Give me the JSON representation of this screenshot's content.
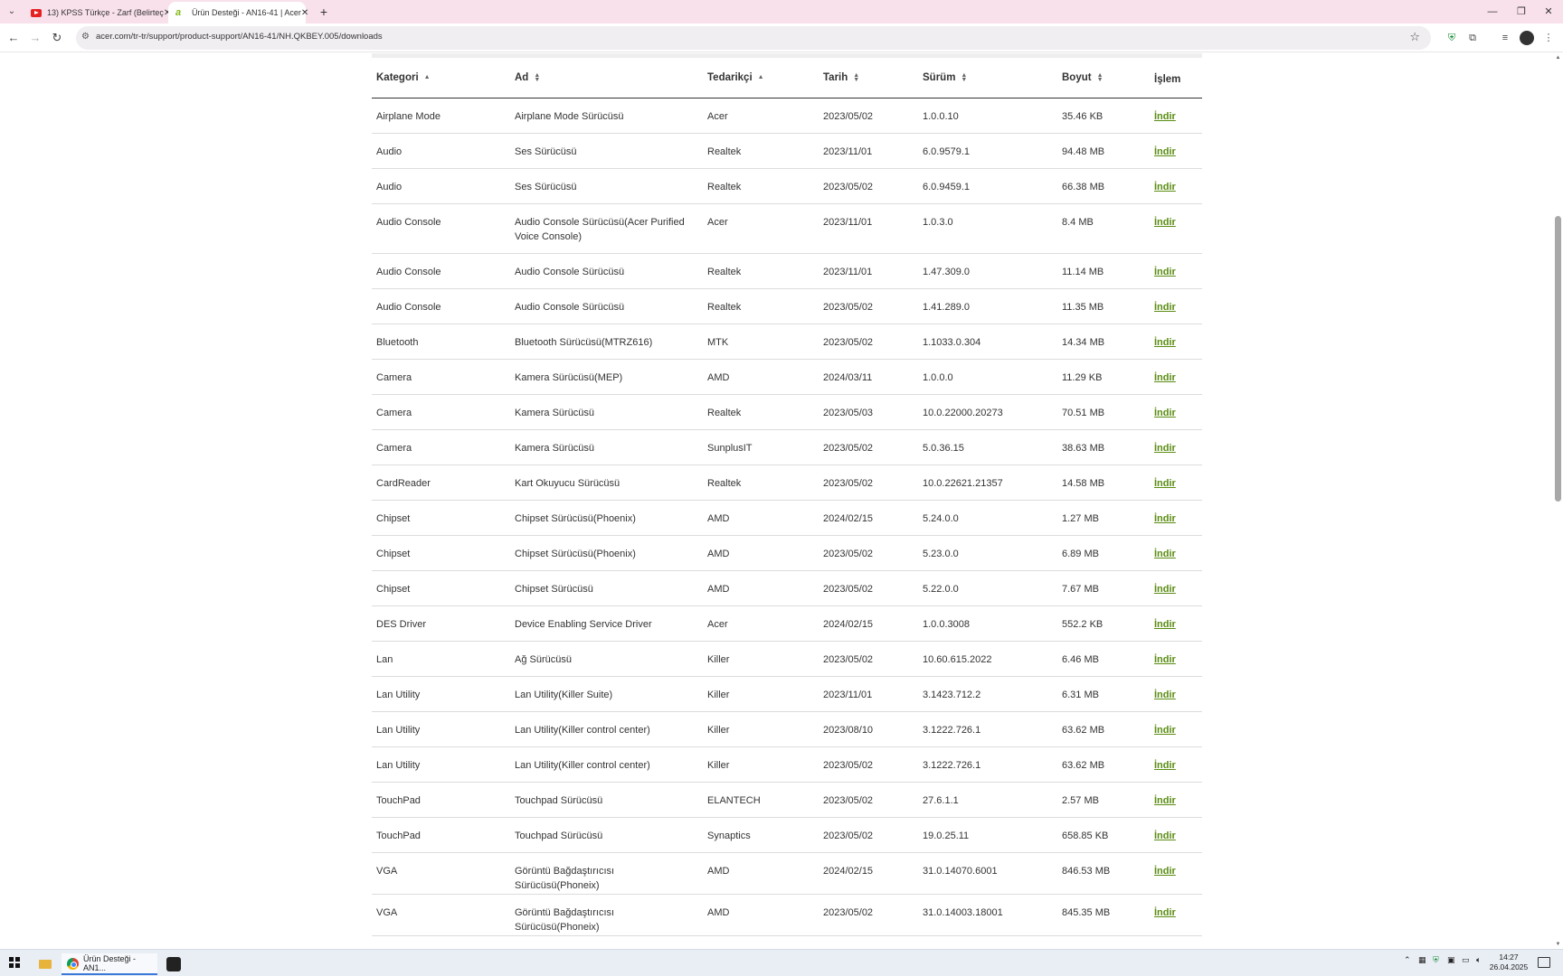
{
  "browser": {
    "tabs": [
      {
        "title": "13) KPSS Türkçe - Zarf (Belirteç",
        "active": false
      },
      {
        "title": "Ürün Desteği - AN16-41 | Acer",
        "active": true
      }
    ],
    "url": "acer.com/tr-tr/support/product-support/AN16-41/NH.QKBEY.005/downloads"
  },
  "table": {
    "headers": {
      "category": "Kategori",
      "name": "Ad",
      "vendor": "Tedarikçi",
      "date": "Tarih",
      "version": "Sürüm",
      "size": "Boyut",
      "action": "İşlem"
    },
    "rows": [
      {
        "category": "Airplane Mode",
        "name": "Airplane Mode Sürücüsü",
        "vendor": "Acer",
        "date": "2023/05/02",
        "version": "1.0.0.10",
        "size": "35.46 KB",
        "action": "İndir"
      },
      {
        "category": "Audio",
        "name": "Ses Sürücüsü",
        "vendor": "Realtek",
        "date": "2023/11/01",
        "version": "6.0.9579.1",
        "size": "94.48 MB",
        "action": "İndir"
      },
      {
        "category": "Audio",
        "name": "Ses Sürücüsü",
        "vendor": "Realtek",
        "date": "2023/05/02",
        "version": "6.0.9459.1",
        "size": "66.38 MB",
        "action": "İndir"
      },
      {
        "category": "Audio Console",
        "name": "Audio Console Sürücüsü(Acer Purified Voice Console)",
        "vendor": "Acer",
        "date": "2023/11/01",
        "version": "1.0.3.0",
        "size": "8.4 MB",
        "action": "İndir"
      },
      {
        "category": "Audio Console",
        "name": "Audio Console Sürücüsü",
        "vendor": "Realtek",
        "date": "2023/11/01",
        "version": "1.47.309.0",
        "size": "11.14 MB",
        "action": "İndir"
      },
      {
        "category": "Audio Console",
        "name": "Audio Console Sürücüsü",
        "vendor": "Realtek",
        "date": "2023/05/02",
        "version": "1.41.289.0",
        "size": "11.35 MB",
        "action": "İndir"
      },
      {
        "category": "Bluetooth",
        "name": "Bluetooth Sürücüsü(MTRZ616)",
        "vendor": "MTK",
        "date": "2023/05/02",
        "version": "1.1033.0.304",
        "size": "14.34 MB",
        "action": "İndir"
      },
      {
        "category": "Camera",
        "name": "Kamera Sürücüsü(MEP)",
        "vendor": "AMD",
        "date": "2024/03/11",
        "version": "1.0.0.0",
        "size": "11.29 KB",
        "action": "İndir"
      },
      {
        "category": "Camera",
        "name": "Kamera Sürücüsü",
        "vendor": "Realtek",
        "date": "2023/05/03",
        "version": "10.0.22000.20273",
        "size": "70.51 MB",
        "action": "İndir"
      },
      {
        "category": "Camera",
        "name": "Kamera Sürücüsü",
        "vendor": "SunplusIT",
        "date": "2023/05/02",
        "version": "5.0.36.15",
        "size": "38.63 MB",
        "action": "İndir"
      },
      {
        "category": "CardReader",
        "name": "Kart Okuyucu Sürücüsü",
        "vendor": "Realtek",
        "date": "2023/05/02",
        "version": "10.0.22621.21357",
        "size": "14.58 MB",
        "action": "İndir"
      },
      {
        "category": "Chipset",
        "name": "Chipset Sürücüsü(Phoenix)",
        "vendor": "AMD",
        "date": "2024/02/15",
        "version": "5.24.0.0",
        "size": "1.27 MB",
        "action": "İndir"
      },
      {
        "category": "Chipset",
        "name": "Chipset Sürücüsü(Phoenix)",
        "vendor": "AMD",
        "date": "2023/05/02",
        "version": "5.23.0.0",
        "size": "6.89 MB",
        "action": "İndir"
      },
      {
        "category": "Chipset",
        "name": "Chipset Sürücüsü",
        "vendor": "AMD",
        "date": "2023/05/02",
        "version": "5.22.0.0",
        "size": "7.67 MB",
        "action": "İndir"
      },
      {
        "category": "DES Driver",
        "name": "Device Enabling Service Driver",
        "vendor": "Acer",
        "date": "2024/02/15",
        "version": "1.0.0.3008",
        "size": "552.2 KB",
        "action": "İndir"
      },
      {
        "category": "Lan",
        "name": "Ağ Sürücüsü",
        "vendor": "Killer",
        "date": "2023/05/02",
        "version": "10.60.615.2022",
        "size": "6.46 MB",
        "action": "İndir"
      },
      {
        "category": "Lan Utility",
        "name": "Lan Utility(Killer Suite)",
        "vendor": "Killer",
        "date": "2023/11/01",
        "version": "3.1423.712.2",
        "size": "6.31 MB",
        "action": "İndir"
      },
      {
        "category": "Lan Utility",
        "name": "Lan Utility(Killer control center)",
        "vendor": "Killer",
        "date": "2023/08/10",
        "version": "3.1222.726.1",
        "size": "63.62 MB",
        "action": "İndir"
      },
      {
        "category": "Lan Utility",
        "name": "Lan Utility(Killer control center)",
        "vendor": "Killer",
        "date": "2023/05/02",
        "version": "3.1222.726.1",
        "size": "63.62 MB",
        "action": "İndir"
      },
      {
        "category": "TouchPad",
        "name": "Touchpad Sürücüsü",
        "vendor": "ELANTECH",
        "date": "2023/05/02",
        "version": "27.6.1.1",
        "size": "2.57 MB",
        "action": "İndir"
      },
      {
        "category": "TouchPad",
        "name": "Touchpad Sürücüsü",
        "vendor": "Synaptics",
        "date": "2023/05/02",
        "version": "19.0.25.11",
        "size": "658.85 KB",
        "action": "İndir"
      },
      {
        "category": "VGA",
        "name": "Görüntü Bağdaştırıcısı Sürücüsü(Phoneix)",
        "vendor": "AMD",
        "date": "2024/02/15",
        "version": "31.0.14070.6001",
        "size": "846.53 MB",
        "action": "İndir"
      },
      {
        "category": "VGA",
        "name": "Görüntü Bağdaştırıcısı Sürücüsü(Phoneix)",
        "vendor": "AMD",
        "date": "2023/05/02",
        "version": "31.0.14003.18001",
        "size": "845.35 MB",
        "action": "İndir"
      }
    ]
  },
  "taskbar": {
    "chrome_label": "Ürün Desteği - AN1...",
    "time": "14:27",
    "date": "26.04.2025"
  },
  "colors": {
    "tabstrip": "#f9e1ec",
    "link": "#5a8c12"
  }
}
